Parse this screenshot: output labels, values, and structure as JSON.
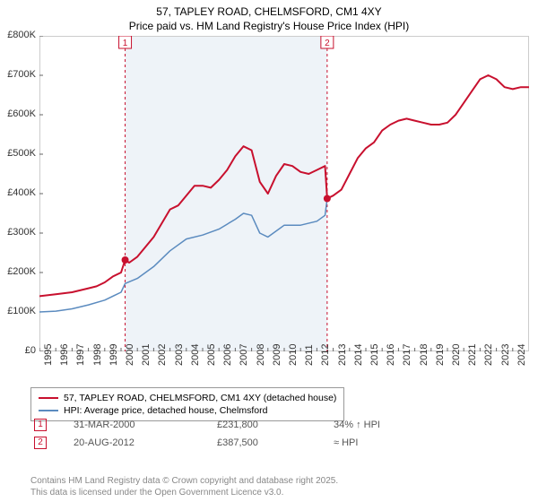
{
  "title_line1": "57, TAPLEY ROAD, CHELMSFORD, CM1 4XY",
  "title_line2": "Price paid vs. HM Land Registry's House Price Index (HPI)",
  "chart": {
    "type": "line",
    "background_color": "#ffffff",
    "plot_border_color": "#cccccc",
    "grid": false,
    "x_axis": {
      "min": 1995,
      "max": 2025,
      "ticks": [
        1995,
        1996,
        1997,
        1998,
        1999,
        2000,
        2001,
        2002,
        2003,
        2004,
        2005,
        2006,
        2007,
        2008,
        2009,
        2010,
        2011,
        2012,
        2013,
        2014,
        2015,
        2016,
        2017,
        2018,
        2019,
        2020,
        2021,
        2022,
        2023,
        2024
      ],
      "tick_label_rotation": -90,
      "tick_fontsize": 11
    },
    "y_axis": {
      "min": 0,
      "max": 800000,
      "ticks": [
        0,
        100000,
        200000,
        300000,
        400000,
        500000,
        600000,
        700000,
        800000
      ],
      "tick_labels": [
        "£0",
        "£100K",
        "£200K",
        "£300K",
        "£400K",
        "£500K",
        "£600K",
        "£700K",
        "£800K"
      ],
      "tick_fontsize": 11
    },
    "shaded_region": {
      "x_start": 2000.25,
      "x_end": 2012.63,
      "fill": "#eef3f8"
    },
    "series": [
      {
        "name": "price_paid",
        "label": "57, TAPLEY ROAD, CHELMSFORD, CM1 4XY (detached house)",
        "color": "#c8102e",
        "line_width": 2,
        "points": [
          [
            1995,
            140000
          ],
          [
            1996,
            145000
          ],
          [
            1997,
            150000
          ],
          [
            1998,
            160000
          ],
          [
            1998.5,
            165000
          ],
          [
            1999,
            175000
          ],
          [
            1999.5,
            190000
          ],
          [
            2000,
            200000
          ],
          [
            2000.25,
            231800
          ],
          [
            2000.5,
            225000
          ],
          [
            2001,
            240000
          ],
          [
            2001.5,
            265000
          ],
          [
            2002,
            290000
          ],
          [
            2002.5,
            325000
          ],
          [
            2003,
            360000
          ],
          [
            2003.5,
            370000
          ],
          [
            2004,
            395000
          ],
          [
            2004.5,
            420000
          ],
          [
            2005,
            420000
          ],
          [
            2005.5,
            415000
          ],
          [
            2006,
            435000
          ],
          [
            2006.5,
            460000
          ],
          [
            2007,
            495000
          ],
          [
            2007.5,
            520000
          ],
          [
            2008,
            510000
          ],
          [
            2008.5,
            430000
          ],
          [
            2009,
            400000
          ],
          [
            2009.5,
            445000
          ],
          [
            2010,
            475000
          ],
          [
            2010.5,
            470000
          ],
          [
            2011,
            455000
          ],
          [
            2011.5,
            450000
          ],
          [
            2012,
            460000
          ],
          [
            2012.5,
            470000
          ],
          [
            2012.63,
            387500
          ],
          [
            2013,
            395000
          ],
          [
            2013.5,
            410000
          ],
          [
            2014,
            450000
          ],
          [
            2014.5,
            490000
          ],
          [
            2015,
            515000
          ],
          [
            2015.5,
            530000
          ],
          [
            2016,
            560000
          ],
          [
            2016.5,
            575000
          ],
          [
            2017,
            585000
          ],
          [
            2017.5,
            590000
          ],
          [
            2018,
            585000
          ],
          [
            2018.5,
            580000
          ],
          [
            2019,
            575000
          ],
          [
            2019.5,
            575000
          ],
          [
            2020,
            580000
          ],
          [
            2020.5,
            600000
          ],
          [
            2021,
            630000
          ],
          [
            2021.5,
            660000
          ],
          [
            2022,
            690000
          ],
          [
            2022.5,
            700000
          ],
          [
            2023,
            690000
          ],
          [
            2023.5,
            670000
          ],
          [
            2024,
            665000
          ],
          [
            2024.5,
            670000
          ],
          [
            2025,
            670000
          ]
        ]
      },
      {
        "name": "hpi",
        "label": "HPI: Average price, detached house, Chelmsford",
        "color": "#5b8bbf",
        "line_width": 1.5,
        "points": [
          [
            1995,
            100000
          ],
          [
            1996,
            102000
          ],
          [
            1997,
            108000
          ],
          [
            1998,
            118000
          ],
          [
            1999,
            130000
          ],
          [
            2000,
            150000
          ],
          [
            2000.25,
            172000
          ],
          [
            2001,
            185000
          ],
          [
            2002,
            215000
          ],
          [
            2003,
            255000
          ],
          [
            2004,
            285000
          ],
          [
            2005,
            295000
          ],
          [
            2006,
            310000
          ],
          [
            2007,
            335000
          ],
          [
            2007.5,
            350000
          ],
          [
            2008,
            345000
          ],
          [
            2008.5,
            300000
          ],
          [
            2009,
            290000
          ],
          [
            2010,
            320000
          ],
          [
            2011,
            320000
          ],
          [
            2012,
            330000
          ],
          [
            2012.5,
            345000
          ],
          [
            2012.63,
            387000
          ]
        ]
      }
    ],
    "markers": [
      {
        "x": 2000.25,
        "y": 231800,
        "color": "#c8102e",
        "radius": 4
      },
      {
        "x": 2012.63,
        "y": 387500,
        "color": "#c8102e",
        "radius": 4
      }
    ],
    "flag_markers": [
      {
        "label": "1",
        "x": 2000.25,
        "color": "#c8102e"
      },
      {
        "label": "2",
        "x": 2012.63,
        "color": "#c8102e"
      }
    ],
    "vlines": [
      {
        "x": 2000.25,
        "color": "#c8102e",
        "dash": "3,3"
      },
      {
        "x": 2012.63,
        "color": "#c8102e",
        "dash": "3,3"
      }
    ]
  },
  "legend": {
    "border_color": "#999999",
    "items": [
      {
        "label": "57, TAPLEY ROAD, CHELMSFORD, CM1 4XY (detached house)",
        "color": "#c8102e"
      },
      {
        "label": "HPI: Average price, detached house, Chelmsford",
        "color": "#5b8bbf"
      }
    ]
  },
  "data_points": [
    {
      "flag": "1",
      "color": "#c8102e",
      "date": "31-MAR-2000",
      "price": "£231,800",
      "pct": "34% ↑ HPI"
    },
    {
      "flag": "2",
      "color": "#c8102e",
      "date": "20-AUG-2012",
      "price": "£387,500",
      "pct": "≈ HPI"
    }
  ],
  "attribution": {
    "line1": "Contains HM Land Registry data © Crown copyright and database right 2025.",
    "line2": "This data is licensed under the Open Government Licence v3.0."
  }
}
